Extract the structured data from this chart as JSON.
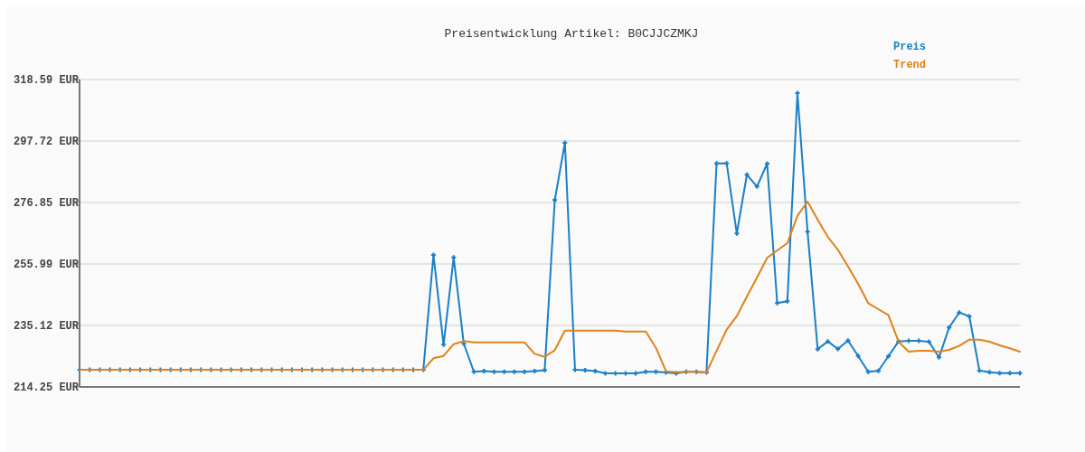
{
  "chart_data": {
    "type": "line",
    "title": "Preisentwicklung Artikel: B0CJJCZMKJ",
    "categories": [
      null,
      null,
      null,
      null,
      null,
      null,
      null,
      null,
      null,
      null,
      null,
      null,
      null,
      null,
      null,
      null,
      null,
      null,
      null,
      null,
      null,
      null,
      null,
      null,
      null,
      null,
      null,
      null,
      null,
      null,
      null,
      null,
      null,
      null,
      null,
      null,
      null,
      null,
      null,
      null,
      null,
      null,
      null,
      null,
      null,
      null,
      null,
      null,
      null,
      null,
      null,
      null,
      null,
      null,
      null,
      null,
      null,
      null,
      null,
      null,
      null,
      null,
      null,
      null,
      null,
      null,
      null,
      null,
      null,
      null,
      null,
      null,
      null,
      null,
      null,
      null,
      null,
      null,
      null,
      null,
      null,
      null,
      null,
      null,
      null,
      null,
      null,
      null,
      null,
      null,
      null,
      null,
      null,
      null
    ],
    "series": [
      {
        "name": "Preis",
        "color": "#1a7fc8",
        "marker": "cross",
        "values": [
          220.08,
          220.08,
          220.08,
          220.08,
          220.08,
          220.08,
          220.08,
          220.08,
          220.08,
          220.08,
          220.08,
          220.08,
          220.08,
          220.08,
          220.08,
          220.08,
          220.08,
          220.08,
          220.08,
          220.08,
          220.08,
          220.08,
          220.08,
          220.08,
          220.08,
          220.08,
          220.08,
          220.08,
          220.08,
          220.08,
          220.08,
          220.08,
          220.08,
          220.08,
          220.08,
          259.05,
          228.58,
          258.2,
          228.9,
          219.38,
          219.6,
          219.4,
          219.4,
          219.4,
          219.4,
          219.6,
          219.9,
          277.68,
          297.11,
          220.08,
          219.9,
          219.6,
          218.85,
          218.85,
          218.85,
          218.85,
          219.4,
          219.4,
          219.16,
          218.85,
          219.4,
          219.4,
          219.16,
          290.14,
          290.14,
          266.33,
          286.28,
          282.29,
          290.05,
          242.7,
          243.3,
          314.0,
          266.94,
          227.05,
          229.7,
          227.14,
          229.99,
          224.78,
          219.38,
          219.68,
          224.68,
          229.69,
          229.9,
          229.9,
          229.6,
          224.28,
          234.41,
          239.51,
          238.19,
          219.77,
          219.25,
          218.95,
          218.95,
          218.95
        ]
      },
      {
        "name": "Trend",
        "color": "#e0821a",
        "marker": "none",
        "values": [
          220.08,
          220.08,
          220.08,
          220.08,
          220.08,
          220.08,
          220.08,
          220.08,
          220.08,
          220.08,
          220.08,
          220.08,
          220.08,
          220.08,
          220.08,
          220.08,
          220.08,
          220.08,
          220.08,
          220.08,
          220.08,
          220.08,
          220.08,
          220.08,
          220.08,
          220.08,
          220.08,
          220.08,
          220.08,
          220.08,
          220.08,
          220.08,
          220.08,
          220.08,
          220.08,
          223.98,
          224.78,
          228.77,
          229.8,
          229.38,
          229.38,
          229.38,
          229.38,
          229.38,
          229.38,
          225.5,
          224.47,
          226.74,
          233.37,
          233.37,
          233.37,
          233.37,
          233.37,
          233.37,
          233.06,
          233.06,
          233.06,
          227.54,
          219.56,
          219.25,
          219.4,
          219.4,
          219.16,
          226.5,
          233.68,
          238.28,
          244.94,
          251.38,
          258.04,
          260.59,
          263.04,
          272.35,
          277.16,
          271.02,
          265.19,
          260.8,
          255.16,
          249.23,
          242.7,
          240.64,
          238.59,
          229.6,
          226.22,
          226.5,
          226.5,
          226.22,
          226.83,
          228.16,
          230.3,
          230.3,
          229.6,
          228.37,
          227.35,
          226.22
        ]
      }
    ],
    "ylim": [
      214.25,
      318.59
    ],
    "yticks": [
      {
        "value": 214.25,
        "label": "214.25 EUR"
      },
      {
        "value": 235.12,
        "label": "235.12 EUR"
      },
      {
        "value": 255.99,
        "label": "255.99 EUR"
      },
      {
        "value": 276.85,
        "label": "276.85 EUR"
      },
      {
        "value": 297.72,
        "label": "297.72 EUR"
      },
      {
        "value": 318.59,
        "label": "318.59 EUR"
      }
    ],
    "grid": "y",
    "legend": "top right",
    "line_style": "solid"
  }
}
